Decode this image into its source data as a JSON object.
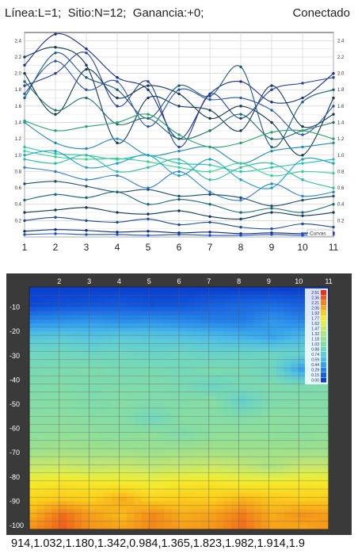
{
  "status": {
    "left_text": "Línea:L=1;  Sitio:N=12;  Ganancia:+0;",
    "right_text": "Conectado"
  },
  "curve_chart": {
    "type": "line",
    "legend_label": "Curvas",
    "x": [
      1,
      2,
      3,
      4,
      5,
      6,
      7,
      8,
      9,
      10,
      11
    ],
    "x_tick_labels": [
      "1",
      "2",
      "3",
      "4",
      "5",
      "6",
      "7",
      "8",
      "9",
      "10",
      "11"
    ],
    "y_tick_labels": [
      "2.4",
      "2.2",
      "2.0",
      "1.8",
      "1.6",
      "1.4",
      "1.2",
      "1.0",
      "0.8",
      "0.6",
      "0.4",
      "0.2"
    ],
    "ylim": [
      0,
      2.5
    ],
    "grid": true,
    "series": [
      {
        "color": "#1a2f8c",
        "values": [
          2.1,
          2.48,
          2.3,
          1.95,
          1.8,
          1.2,
          1.75,
          1.9,
          1.65,
          1.7,
          2.0
        ]
      },
      {
        "color": "#12395a",
        "values": [
          2.2,
          2.32,
          2.1,
          1.15,
          1.7,
          1.6,
          1.55,
          1.3,
          1.85,
          1.35,
          1.5
        ]
      },
      {
        "color": "#1e5a7a",
        "values": [
          1.7,
          2.25,
          1.95,
          1.8,
          1.45,
          1.85,
          1.72,
          2.08,
          1.1,
          1.65,
          1.8
        ]
      },
      {
        "color": "#2a3f9e",
        "values": [
          1.85,
          2.0,
          2.25,
          1.6,
          1.9,
          1.1,
          1.75,
          1.45,
          1.8,
          1.88,
          1.95
        ]
      },
      {
        "color": "#123a4a",
        "values": [
          2.0,
          1.5,
          2.05,
          1.7,
          1.85,
          1.75,
          1.45,
          1.6,
          1.4,
          1.0,
          1.7
        ]
      },
      {
        "color": "#2b54b0",
        "values": [
          1.75,
          2.15,
          1.8,
          1.9,
          1.35,
          1.8,
          1.68,
          1.7,
          1.55,
          1.25,
          1.6
        ]
      },
      {
        "color": "#1d6e6a",
        "values": [
          1.9,
          1.55,
          1.7,
          1.38,
          1.45,
          1.2,
          1.3,
          1.5,
          1.2,
          1.3,
          1.4
        ]
      },
      {
        "color": "#1e8ab8",
        "values": [
          1.4,
          1.15,
          1.08,
          1.2,
          1.0,
          1.05,
          1.1,
          0.9,
          1.05,
          1.1,
          1.15
        ]
      },
      {
        "color": "#22c9a6",
        "values": [
          1.1,
          1.02,
          1.0,
          0.95,
          1.0,
          0.9,
          0.88,
          0.8,
          0.85,
          0.9,
          0.95
        ]
      },
      {
        "color": "#2fd68a",
        "values": [
          1.05,
          0.98,
          0.95,
          0.96,
          0.92,
          0.85,
          0.8,
          0.9,
          0.75,
          0.8,
          0.78
        ]
      },
      {
        "color": "#18a0c8",
        "values": [
          1.0,
          1.05,
          0.85,
          0.9,
          1.0,
          0.75,
          0.95,
          0.7,
          0.6,
          0.95,
          0.9
        ]
      },
      {
        "color": "#2bbf9a",
        "values": [
          0.95,
          0.9,
          1.0,
          0.8,
          0.85,
          0.95,
          0.7,
          0.85,
          0.9,
          0.7,
          0.6
        ]
      },
      {
        "color": "#25a56a",
        "values": [
          1.42,
          1.3,
          1.35,
          1.4,
          1.5,
          1.25,
          1.1,
          1.15,
          1.28,
          1.3,
          1.2
        ]
      },
      {
        "color": "#2f7fd0",
        "values": [
          0.85,
          0.8,
          0.7,
          0.75,
          0.6,
          0.8,
          0.55,
          0.45,
          0.65,
          0.5,
          0.55
        ]
      },
      {
        "color": "#1f4f6e",
        "values": [
          0.65,
          0.68,
          0.62,
          0.55,
          0.58,
          0.5,
          0.52,
          0.48,
          0.38,
          0.45,
          0.5
        ]
      },
      {
        "color": "#166a7a",
        "values": [
          0.45,
          0.52,
          0.48,
          0.55,
          0.4,
          0.46,
          0.4,
          0.3,
          0.35,
          0.3,
          0.4
        ]
      },
      {
        "color": "#0f3a5a",
        "values": [
          0.3,
          0.33,
          0.36,
          0.3,
          0.28,
          0.32,
          0.25,
          0.22,
          0.3,
          0.26,
          0.3
        ]
      },
      {
        "color": "#1d4c9a",
        "values": [
          0.2,
          0.24,
          0.2,
          0.18,
          0.22,
          0.15,
          0.18,
          0.12,
          0.1,
          0.16,
          0.12
        ]
      },
      {
        "color": "#0d2a7a",
        "values": [
          0.07,
          0.09,
          0.08,
          0.06,
          0.07,
          0.05,
          0.06,
          0.04,
          0.05,
          0.04,
          0.05
        ]
      },
      {
        "color": "#1a4fc0",
        "values": [
          0.03,
          0.04,
          0.03,
          0.03,
          0.02,
          0.03,
          0.02,
          0.02,
          0.03,
          0.02,
          0.03
        ]
      }
    ]
  },
  "heatmap": {
    "type": "heatmap",
    "x_tick_labels": [
      "2",
      "3",
      "4",
      "5",
      "6",
      "7",
      "8",
      "9",
      "10",
      "11"
    ],
    "y_tick_labels": [
      "-10",
      "-20",
      "-30",
      "-40",
      "-50",
      "-60",
      "-70",
      "-80",
      "-90",
      "-100"
    ],
    "colorbar_labels": [
      "2.51",
      "2.36",
      "2.21",
      "2.06",
      "1.92",
      "1.77",
      "1.62",
      "1.47",
      "1.32",
      "1.18",
      "1.03",
      "0.88",
      "0.74",
      "0.59",
      "0.44",
      "0.29",
      "0.15",
      "0.00"
    ],
    "colorbar_colors": [
      "#e8301a",
      "#ee5a1a",
      "#f3841a",
      "#f7a81a",
      "#fbd01c",
      "#f6e82a",
      "#e3ef44",
      "#cbe868",
      "#b3e37e",
      "#9ae08f",
      "#84dca6",
      "#70d6bf",
      "#5ecbd6",
      "#4abbe8",
      "#35a0ee",
      "#2482ea",
      "#1661e0",
      "#0a3fd0"
    ],
    "grid_rows": [
      [
        0.0,
        0.0,
        0.0,
        0.0,
        0.0,
        0.0,
        0.0,
        0.0,
        0.0,
        0.0,
        0.0
      ],
      [
        0.05,
        0.08,
        0.1,
        0.12,
        0.08,
        0.1,
        0.15,
        0.18,
        0.2,
        0.15,
        0.12
      ],
      [
        0.35,
        0.38,
        0.4,
        0.36,
        0.38,
        0.34,
        0.3,
        0.28,
        0.4,
        0.32,
        0.36
      ],
      [
        0.7,
        0.72,
        0.68,
        0.72,
        0.7,
        0.66,
        0.62,
        0.55,
        0.48,
        0.6,
        0.66
      ],
      [
        0.88,
        0.9,
        0.86,
        0.88,
        0.84,
        0.88,
        0.82,
        0.84,
        0.86,
        0.8,
        0.88
      ],
      [
        0.96,
        0.98,
        1.0,
        0.95,
        0.96,
        0.92,
        0.98,
        0.94,
        0.88,
        0.45,
        0.9
      ],
      [
        1.0,
        1.02,
        0.98,
        1.0,
        1.0,
        0.96,
        0.86,
        0.95,
        0.99,
        0.96,
        1.0
      ],
      [
        1.03,
        1.05,
        1.0,
        1.04,
        1.0,
        1.02,
        1.06,
        0.8,
        1.0,
        1.03,
        1.04
      ],
      [
        1.06,
        1.08,
        1.05,
        1.04,
        0.9,
        1.06,
        1.04,
        1.02,
        1.08,
        1.06,
        1.06
      ],
      [
        1.1,
        1.12,
        1.1,
        1.08,
        1.1,
        1.0,
        1.1,
        1.12,
        1.1,
        1.08,
        1.12
      ],
      [
        1.2,
        1.24,
        1.22,
        1.2,
        1.18,
        1.22,
        1.24,
        1.2,
        1.22,
        1.2,
        1.22
      ],
      [
        1.45,
        1.48,
        1.42,
        1.46,
        1.4,
        1.44,
        1.48,
        1.42,
        1.3,
        1.46,
        1.44
      ],
      [
        1.75,
        1.8,
        1.78,
        1.76,
        1.72,
        1.78,
        1.8,
        1.74,
        1.76,
        1.78,
        1.76
      ],
      [
        1.9,
        1.95,
        1.92,
        2.05,
        1.9,
        1.94,
        1.92,
        2.02,
        1.95,
        1.92,
        1.94
      ],
      [
        2.05,
        2.3,
        2.1,
        2.0,
        2.2,
        2.05,
        2.1,
        2.25,
        2.05,
        2.15,
        2.1
      ],
      [
        2.2,
        2.35,
        2.15,
        2.1,
        2.2,
        2.12,
        2.15,
        2.3,
        2.1,
        2.05,
        2.15
      ]
    ]
  },
  "data_line": "914,1.032,1.180,1.342,0.984,1.365,1.823,1.982,1.914,1.9"
}
